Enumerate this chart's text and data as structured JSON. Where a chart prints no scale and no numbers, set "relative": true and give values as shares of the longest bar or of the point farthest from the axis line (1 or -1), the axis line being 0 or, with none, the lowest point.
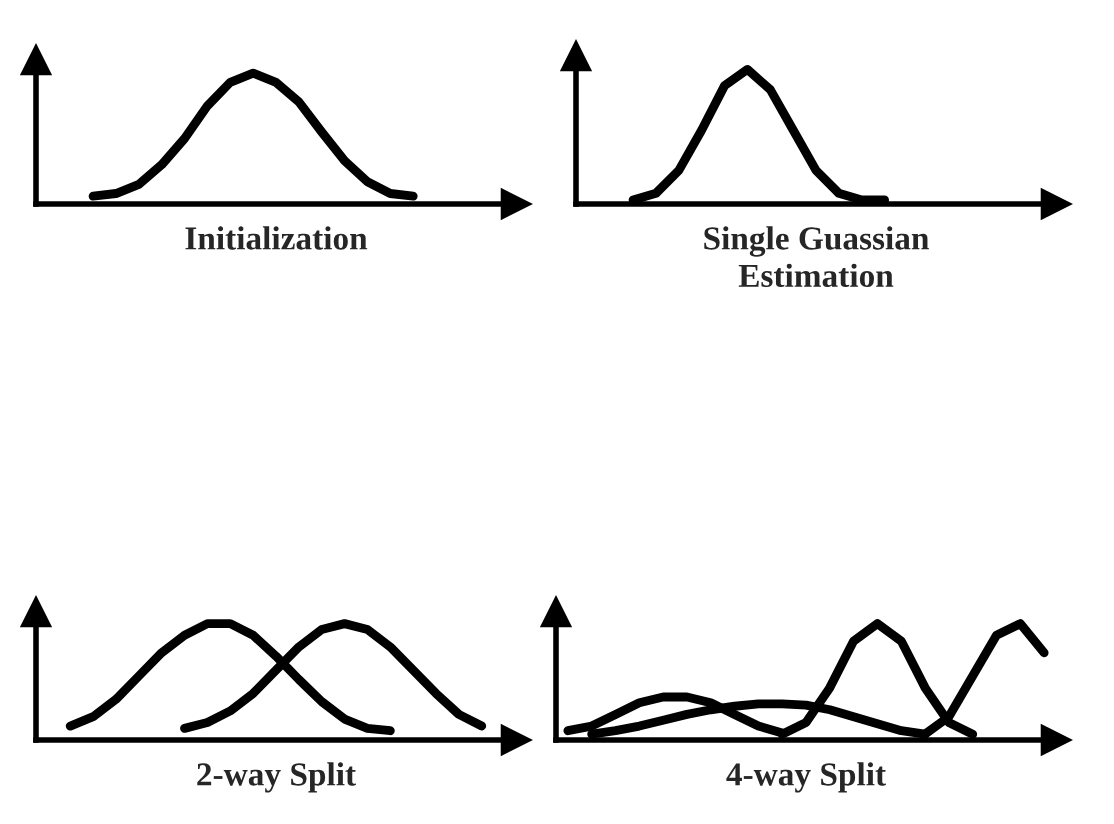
{
  "chart_data": [
    {
      "type": "line",
      "relative": true,
      "tick_labels": false,
      "xlabel": "Initialization",
      "categories": [
        null,
        null,
        null,
        null,
        null,
        null,
        null,
        null,
        null,
        null,
        null,
        null,
        null,
        null,
        null,
        null,
        null,
        null,
        null,
        null,
        null
      ],
      "series": [
        {
          "color": "#000000",
          "values": [
            null,
            null,
            0.06,
            0.08,
            0.15,
            0.3,
            0.5,
            0.75,
            0.93,
            1.0,
            0.93,
            0.78,
            0.55,
            0.33,
            0.17,
            0.08,
            0.06,
            null,
            null,
            null,
            null
          ]
        }
      ]
    },
    {
      "type": "line",
      "relative": true,
      "tick_labels": false,
      "xlabel": "Single Guassian\nEstimation",
      "categories": [
        null,
        null,
        null,
        null,
        null,
        null,
        null,
        null,
        null,
        null,
        null,
        null,
        null,
        null,
        null,
        null,
        null,
        null,
        null,
        null,
        null
      ],
      "series": [
        {
          "color": "#000000",
          "values": [
            null,
            null,
            0.03,
            0.08,
            0.25,
            0.55,
            0.88,
            1.0,
            0.85,
            0.55,
            0.25,
            0.08,
            0.03,
            0.03,
            null,
            null,
            null,
            null,
            null,
            null,
            null
          ]
        }
      ]
    },
    {
      "type": "line",
      "relative": true,
      "tick_labels": false,
      "xlabel": "2-way Split",
      "categories": [
        null,
        null,
        null,
        null,
        null,
        null,
        null,
        null,
        null,
        null,
        null,
        null,
        null,
        null,
        null,
        null,
        null,
        null,
        null,
        null,
        null
      ],
      "series": [
        {
          "color": "#000000",
          "values": [
            null,
            0.12,
            0.2,
            0.35,
            0.55,
            0.75,
            0.9,
            1.0,
            1.0,
            0.9,
            0.72,
            0.52,
            0.33,
            0.18,
            0.1,
            0.08,
            null,
            null,
            null,
            null,
            null
          ]
        },
        {
          "color": "#000000",
          "values": [
            null,
            null,
            null,
            null,
            null,
            null,
            0.1,
            0.15,
            0.25,
            0.4,
            0.6,
            0.8,
            0.95,
            1.0,
            0.95,
            0.8,
            0.6,
            0.4,
            0.22,
            0.12,
            null
          ]
        }
      ]
    },
    {
      "type": "line",
      "relative": true,
      "tick_labels": false,
      "xlabel": "4-way Split",
      "categories": [
        null,
        null,
        null,
        null,
        null,
        null,
        null,
        null,
        null,
        null,
        null,
        null,
        null,
        null,
        null,
        null,
        null,
        null,
        null,
        null,
        null
      ],
      "series": [
        {
          "color": "#000000",
          "values": [
            0.08,
            0.12,
            0.22,
            0.32,
            0.37,
            0.37,
            0.32,
            0.22,
            0.12,
            0.06,
            null,
            null,
            null,
            null,
            null,
            null,
            null,
            null,
            null,
            null,
            null
          ]
        },
        {
          "color": "#000000",
          "values": [
            null,
            0.05,
            0.08,
            0.12,
            0.17,
            0.22,
            0.26,
            0.29,
            0.31,
            0.31,
            0.3,
            0.26,
            0.2,
            0.14,
            0.08,
            0.05,
            null,
            null,
            null,
            null,
            null
          ]
        },
        {
          "color": "#000000",
          "values": [
            null,
            null,
            null,
            null,
            null,
            null,
            null,
            null,
            null,
            0.05,
            0.15,
            0.45,
            0.85,
            1.0,
            0.85,
            0.45,
            0.15,
            0.05,
            null,
            null,
            null
          ]
        },
        {
          "color": "#000000",
          "values": [
            null,
            null,
            null,
            null,
            null,
            null,
            null,
            null,
            null,
            null,
            null,
            null,
            null,
            null,
            null,
            0.05,
            0.2,
            0.55,
            0.9,
            1.0,
            0.75
          ]
        }
      ]
    }
  ]
}
